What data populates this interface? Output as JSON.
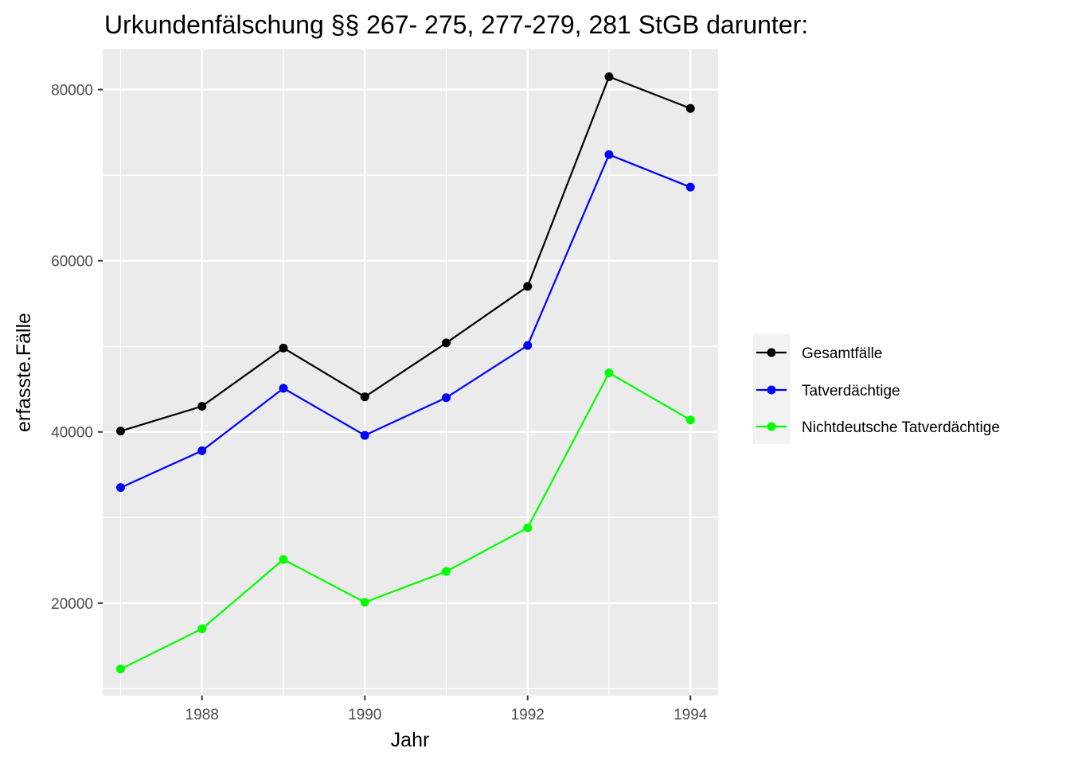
{
  "chart_data": {
    "type": "line",
    "title": "Urkundenfälschung §§ 267- 275, 277-279, 281 StGB darunter:",
    "xlabel": "Jahr",
    "ylabel": "erfasste.Fälle",
    "x": [
      1987,
      1988,
      1989,
      1990,
      1991,
      1992,
      1993,
      1994
    ],
    "xlim": [
      1986.78,
      1994.34
    ],
    "ylim": [
      9200,
      84700
    ],
    "x_ticks": [
      1988,
      1990,
      1992,
      1994
    ],
    "y_ticks": [
      20000,
      40000,
      60000,
      80000
    ],
    "x_tick_labels": [
      "1988",
      "1990",
      "1992",
      "1994"
    ],
    "y_tick_labels": [
      "20000",
      "40000",
      "60000",
      "80000"
    ],
    "grid": true,
    "legend_position": "right",
    "series": [
      {
        "name": "Gesamtfälle",
        "color": "#000000",
        "values": [
          40100,
          43000,
          49800,
          44100,
          50400,
          57000,
          81500,
          77800
        ]
      },
      {
        "name": "Tatverdächtige",
        "color": "#0000ff",
        "values": [
          33500,
          37800,
          45100,
          39600,
          44000,
          50100,
          72400,
          68600
        ]
      },
      {
        "name": "Nichtdeutsche Tatverdächtige",
        "color": "#00ff00",
        "values": [
          12300,
          17000,
          25100,
          20100,
          23700,
          28800,
          46900,
          41400
        ]
      }
    ]
  }
}
